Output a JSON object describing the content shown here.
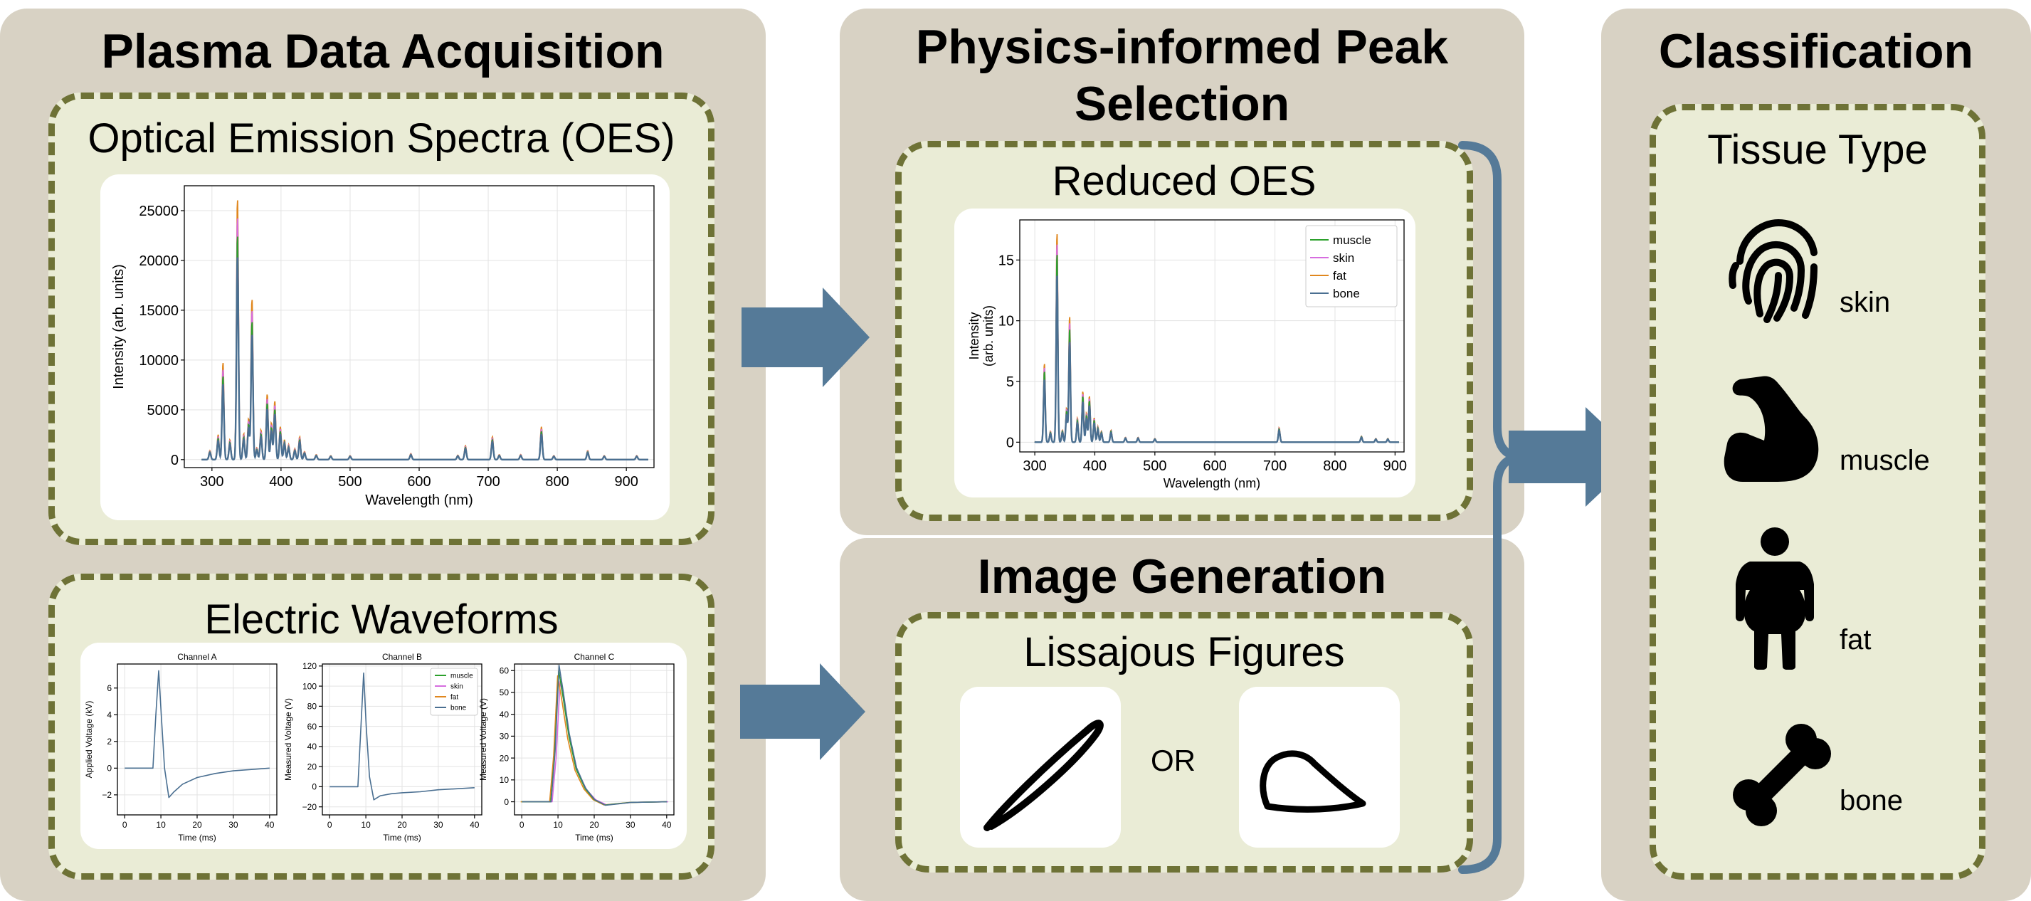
{
  "panels": {
    "acquisition": {
      "title": "Plasma Data Acquisition"
    },
    "peak_selection": {
      "title_line1": "Physics-informed Peak",
      "title_line2": "Selection"
    },
    "image_generation": {
      "title": "Image Generation"
    },
    "classification": {
      "title": "Classification"
    }
  },
  "boxes": {
    "oes": "Optical Emission Spectra (OES)",
    "waveforms": "Electric Waveforms",
    "reduced_oes": "Reduced OES",
    "lissajous": "Lissajous Figures",
    "tissue": "Tissue Type"
  },
  "or_text": "OR",
  "tissues": [
    {
      "label": "skin",
      "icon": "fingerprint-icon"
    },
    {
      "label": "muscle",
      "icon": "flexed-arm-icon"
    },
    {
      "label": "fat",
      "icon": "person-icon"
    },
    {
      "label": "bone",
      "icon": "bone-icon"
    }
  ],
  "colors": {
    "muscle": "#2ca02c",
    "skin": "#d66ddf",
    "fat": "#e0871e",
    "bone": "#4a6f91",
    "arrow": "#557a98",
    "panel_bg": "#d8d2c4",
    "dashed_box_bg": "#eaecd6",
    "dashed_border": "#6e7236"
  },
  "chart_data": [
    {
      "id": "oes_full",
      "type": "line",
      "title": "",
      "xlabel": "Wavelength (nm)",
      "ylabel": "Intensity (arb. units)",
      "xlim": [
        260,
        940
      ],
      "ylim": [
        -800,
        27500
      ],
      "xticks": [
        300,
        400,
        500,
        600,
        700,
        800,
        900
      ],
      "yticks": [
        0,
        5000,
        10000,
        15000,
        20000,
        25000
      ],
      "grid": true,
      "legend": "none",
      "peaks": [
        {
          "x": 297,
          "y": 900
        },
        {
          "x": 309,
          "y": 2500
        },
        {
          "x": 316,
          "y": 9800
        },
        {
          "x": 326,
          "y": 2000
        },
        {
          "x": 337,
          "y": 26300
        },
        {
          "x": 346,
          "y": 2600
        },
        {
          "x": 353,
          "y": 4100
        },
        {
          "x": 358,
          "y": 16200
        },
        {
          "x": 365,
          "y": 1200
        },
        {
          "x": 371,
          "y": 3000
        },
        {
          "x": 380,
          "y": 6600
        },
        {
          "x": 386,
          "y": 3700
        },
        {
          "x": 391,
          "y": 5900
        },
        {
          "x": 399,
          "y": 3300
        },
        {
          "x": 405,
          "y": 2000
        },
        {
          "x": 411,
          "y": 1500
        },
        {
          "x": 420,
          "y": 1100
        },
        {
          "x": 427,
          "y": 2300
        },
        {
          "x": 434,
          "y": 800
        },
        {
          "x": 451,
          "y": 500
        },
        {
          "x": 472,
          "y": 400
        },
        {
          "x": 500,
          "y": 400
        },
        {
          "x": 588,
          "y": 600
        },
        {
          "x": 656,
          "y": 450
        },
        {
          "x": 667,
          "y": 1400
        },
        {
          "x": 706,
          "y": 2300
        },
        {
          "x": 716,
          "y": 500
        },
        {
          "x": 747,
          "y": 500
        },
        {
          "x": 777,
          "y": 3300
        },
        {
          "x": 795,
          "y": 400
        },
        {
          "x": 844,
          "y": 900
        },
        {
          "x": 868,
          "y": 400
        },
        {
          "x": 915,
          "y": 400
        }
      ]
    },
    {
      "id": "oes_reduced",
      "type": "line",
      "title": "",
      "xlabel": "Wavelength (nm)",
      "ylabel_line1": "Intensity",
      "ylabel_line2": "(arb. units)",
      "xlim": [
        275,
        915
      ],
      "ylim": [
        -0.8,
        18.3
      ],
      "xticks": [
        300,
        400,
        500,
        600,
        700,
        800,
        900
      ],
      "yticks": [
        0,
        5,
        10,
        15
      ],
      "grid": true,
      "legend": "top-right",
      "series_names": [
        "muscle",
        "skin",
        "fat",
        "bone"
      ],
      "peaks": [
        {
          "x": 297,
          "y": 0.6
        },
        {
          "x": 316,
          "y": 6.5
        },
        {
          "x": 326,
          "y": 0.9
        },
        {
          "x": 337,
          "y": 17.3
        },
        {
          "x": 346,
          "y": 1.0
        },
        {
          "x": 353,
          "y": 2.8
        },
        {
          "x": 358,
          "y": 10.4
        },
        {
          "x": 371,
          "y": 2.0
        },
        {
          "x": 380,
          "y": 4.2
        },
        {
          "x": 386,
          "y": 2.4
        },
        {
          "x": 391,
          "y": 3.8
        },
        {
          "x": 399,
          "y": 2.0
        },
        {
          "x": 405,
          "y": 1.3
        },
        {
          "x": 411,
          "y": 0.9
        },
        {
          "x": 427,
          "y": 1.0
        },
        {
          "x": 451,
          "y": 0.4
        },
        {
          "x": 472,
          "y": 0.4
        },
        {
          "x": 500,
          "y": 0.3
        },
        {
          "x": 707,
          "y": 1.2
        },
        {
          "x": 844,
          "y": 0.5
        },
        {
          "x": 868,
          "y": 0.3
        },
        {
          "x": 888,
          "y": 0.3
        }
      ]
    },
    {
      "id": "channel_a",
      "type": "line",
      "title": "Channel A",
      "xlabel": "Time (ms)",
      "ylabel": "Applied Voltage (kV)",
      "xlim": [
        -2,
        42
      ],
      "ylim": [
        -3.5,
        7.8
      ],
      "xticks": [
        0,
        10,
        20,
        30,
        40
      ],
      "yticks": [
        -2,
        0,
        2,
        4,
        6
      ],
      "grid": true,
      "points": [
        [
          0,
          0
        ],
        [
          7.8,
          0
        ],
        [
          8.6,
          4
        ],
        [
          9.4,
          7.3
        ],
        [
          10.1,
          4
        ],
        [
          11,
          0
        ],
        [
          12.2,
          -2.2
        ],
        [
          13.5,
          -1.8
        ],
        [
          16,
          -1.2
        ],
        [
          20,
          -0.7
        ],
        [
          25,
          -0.4
        ],
        [
          30,
          -0.2
        ],
        [
          35,
          -0.1
        ],
        [
          40,
          0
        ]
      ]
    },
    {
      "id": "channel_b",
      "type": "line",
      "title": "Channel B",
      "xlabel": "Time (ms)",
      "ylabel": "Measured Voltage (V)",
      "xlim": [
        -2,
        42
      ],
      "ylim": [
        -28,
        122
      ],
      "xticks": [
        0,
        10,
        20,
        30,
        40
      ],
      "yticks": [
        -20,
        0,
        20,
        40,
        60,
        80,
        100,
        120
      ],
      "grid": true,
      "legend": "top-right",
      "series_names": [
        "muscle",
        "skin",
        "fat",
        "bone"
      ],
      "points": [
        [
          0,
          0
        ],
        [
          7.8,
          0
        ],
        [
          8.5,
          50
        ],
        [
          9.4,
          113
        ],
        [
          10.1,
          60
        ],
        [
          11,
          10
        ],
        [
          12.2,
          -13
        ],
        [
          14,
          -9
        ],
        [
          17,
          -7
        ],
        [
          20,
          -6
        ],
        [
          25,
          -5
        ],
        [
          30,
          -3
        ],
        [
          35,
          -2
        ],
        [
          40,
          -1
        ]
      ]
    },
    {
      "id": "channel_c",
      "type": "line",
      "title": "Channel C",
      "xlabel": "Time (ms)",
      "ylabel": "Measured Voltage (V)",
      "xlim": [
        -2,
        42
      ],
      "ylim": [
        -6,
        63
      ],
      "xticks": [
        0,
        10,
        20,
        30,
        40
      ],
      "yticks": [
        0,
        10,
        20,
        30,
        40,
        50,
        60
      ],
      "grid": true,
      "points": [
        [
          0,
          0
        ],
        [
          8,
          0
        ],
        [
          9.1,
          22
        ],
        [
          10.2,
          60
        ],
        [
          11.4,
          48
        ],
        [
          13,
          30
        ],
        [
          15,
          15
        ],
        [
          17.5,
          6
        ],
        [
          20,
          1
        ],
        [
          23,
          -1.5
        ],
        [
          26,
          -1
        ],
        [
          30,
          -0.3
        ],
        [
          40,
          0
        ]
      ]
    }
  ]
}
